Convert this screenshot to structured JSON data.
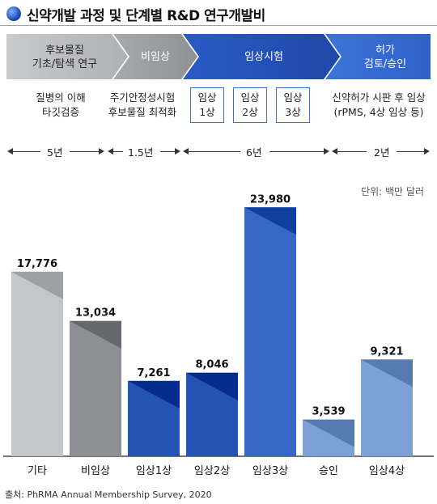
{
  "title": "신약개발 과정 및 단계별 R&D 연구개발비",
  "stages": [
    {
      "line1": "후보물질",
      "line2": "기초/탐색 연구"
    },
    {
      "line1": "비임상",
      "line2": ""
    },
    {
      "line1": "임상시험",
      "line2": ""
    },
    {
      "line1": "허가",
      "line2": "검토/승인"
    }
  ],
  "descriptions": {
    "discovery": [
      "질병의 이해",
      "타깃검증"
    ],
    "preclinical": [
      "주기안정성시험",
      "후보물질 최적화"
    ],
    "phases": [
      "임상\n1상",
      "임상\n2상",
      "임상\n3상"
    ],
    "approval": [
      "신약허가 시판 후 임상",
      "(rPMS, 4상 임상 등)"
    ]
  },
  "durations": [
    "5년",
    "1.5년",
    "6년",
    "2년"
  ],
  "unit_label": "단위: 백만 달러",
  "source": "출처: PhRMA Annual Membership Survey, 2020",
  "colors": {
    "gray_light": "#c4c6ca",
    "gray_dark": "#8d8f94",
    "blue_dark": "#2553b3",
    "blue_mid": "#3567c6",
    "blue_light": "#7da0d6",
    "banner_gray": "#9b9da2",
    "banner_blue": "#2f5fc4"
  },
  "chart_data": {
    "type": "bar",
    "categories": [
      "기타",
      "비임상",
      "임상1상",
      "임상2상",
      "임상3상",
      "승인",
      "임상4상"
    ],
    "values": [
      17776,
      13034,
      7261,
      8046,
      23980,
      3539,
      9321
    ],
    "value_labels": [
      "17,776",
      "13,034",
      "7,261",
      "8,046",
      "23,980",
      "3,539",
      "9,321"
    ],
    "bar_colors": [
      "gray_light",
      "gray_dark",
      "blue_dark",
      "blue_dark",
      "blue_mid",
      "blue_light",
      "blue_light"
    ],
    "ylim": [
      0,
      24000
    ],
    "title": "",
    "xlabel": "",
    "ylabel": ""
  }
}
